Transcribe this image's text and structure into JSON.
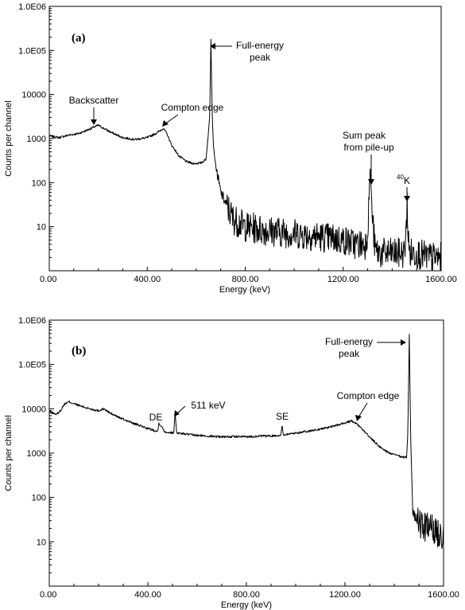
{
  "chart_data": [
    {
      "type": "line",
      "panel_label": "(a)",
      "xlabel": "Energy (keV)",
      "ylabel": "Counts per channel",
      "xlim": [
        0,
        1600
      ],
      "ylim": [
        1,
        1000000
      ],
      "yscale": "log",
      "x_ticks": [
        0,
        400,
        800,
        1200,
        1600
      ],
      "x_tick_labels": [
        "0.00",
        "400.00",
        "800.00",
        "1200.00",
        "1600.00"
      ],
      "y_ticks": [
        10,
        100,
        1000,
        10000,
        100000,
        1000000
      ],
      "y_tick_labels": [
        "10",
        "100",
        "1000",
        "10000",
        "1.0E05",
        "1.0E06"
      ],
      "grid": false,
      "series": [
        {
          "x": [
            0,
            40,
            80,
            120,
            160,
            190,
            200,
            215,
            250,
            300,
            350,
            400,
            440,
            465,
            480,
            500,
            530,
            560,
            590,
            620,
            640,
            655,
            660,
            665,
            670,
            680,
            700,
            750,
            800,
            900,
            1000,
            1100,
            1200,
            1250,
            1290,
            1300,
            1310,
            1320,
            1330,
            1350,
            1400,
            1450,
            1458,
            1461,
            1464,
            1470,
            1500,
            1550,
            1600
          ],
          "y": [
            1150,
            1050,
            1200,
            1300,
            1600,
            1900,
            2000,
            1800,
            1400,
            1050,
            950,
            1050,
            1350,
            1700,
            1300,
            700,
            400,
            300,
            270,
            280,
            340,
            3000,
            180000,
            4000,
            700,
            230,
            60,
            15,
            10,
            8,
            7,
            6,
            5,
            4,
            4,
            8,
            200,
            15,
            3,
            2.5,
            2.5,
            2.5,
            8,
            60,
            8,
            2.5,
            2.5,
            2,
            2
          ]
        }
      ],
      "annotations": [
        {
          "text": "Backscatter",
          "x": 200,
          "y": 2000
        },
        {
          "text": "Compton edge",
          "x": 470,
          "y": 1700
        },
        {
          "text": "Full-energy",
          "text2": "peak",
          "x": 662,
          "y": 180000
        },
        {
          "text": "Sum peak",
          "text2": "from pile-up",
          "x": 1324,
          "y": 200
        },
        {
          "text": "40",
          "text2": "K",
          "x": 1461,
          "y": 60
        }
      ]
    },
    {
      "type": "line",
      "panel_label": "(b)",
      "xlabel": "Energy (keV)",
      "ylabel": "Counts per channel",
      "xlim": [
        0,
        1600
      ],
      "ylim": [
        1,
        1000000
      ],
      "yscale": "log",
      "x_ticks": [
        0,
        400,
        800,
        1200,
        1600
      ],
      "x_tick_labels": [
        "0.00",
        "400.00",
        "800.00",
        "1200.00",
        "1600.00"
      ],
      "y_ticks": [
        10,
        100,
        1000,
        10000,
        100000,
        1000000
      ],
      "y_tick_labels": [
        "10",
        "100",
        "1000",
        "10000",
        "1.0E05",
        "1.0E06"
      ],
      "grid": false,
      "series": [
        {
          "x": [
            0,
            15,
            30,
            45,
            60,
            75,
            80,
            100,
            150,
            200,
            220,
            250,
            300,
            350,
            400,
            430,
            440,
            445,
            470,
            495,
            505,
            511,
            517,
            530,
            600,
            700,
            800,
            900,
            930,
            940,
            945,
            950,
            980,
            1050,
            1100,
            1150,
            1200,
            1230,
            1245,
            1270,
            1300,
            1340,
            1380,
            1420,
            1440,
            1450,
            1455,
            1461,
            1467,
            1475,
            1490,
            1500,
            1520,
            1540,
            1560,
            1580,
            1600
          ],
          "y": [
            9000,
            8000,
            7500,
            9000,
            12500,
            14000,
            14500,
            13000,
            10500,
            9000,
            10000,
            7800,
            5800,
            4500,
            3600,
            3200,
            3100,
            4800,
            3000,
            2900,
            2850,
            8000,
            2900,
            2800,
            2500,
            2350,
            2350,
            2450,
            2500,
            2550,
            4200,
            2600,
            2750,
            3100,
            3500,
            4000,
            4800,
            5300,
            4600,
            3500,
            2300,
            1400,
            1000,
            850,
            800,
            820,
            3000,
            480000,
            2000,
            50,
            30,
            25,
            22,
            20,
            18,
            16,
            15
          ]
        }
      ],
      "annotations": [
        {
          "text": "DE",
          "x": 440,
          "y": 3100
        },
        {
          "text": "511 keV",
          "x": 511,
          "y": 8000
        },
        {
          "text": "SE",
          "x": 945,
          "y": 4200
        },
        {
          "text": "Compton edge",
          "x": 1235,
          "y": 5300
        },
        {
          "text": "Full-energy",
          "text2": "peak",
          "x": 1461,
          "y": 480000
        }
      ]
    }
  ]
}
